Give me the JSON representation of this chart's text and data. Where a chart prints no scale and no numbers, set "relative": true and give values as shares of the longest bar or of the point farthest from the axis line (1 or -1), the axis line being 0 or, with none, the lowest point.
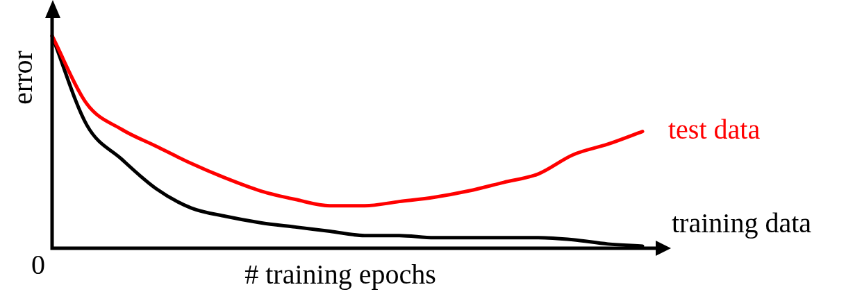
{
  "chart_data": {
    "type": "line",
    "relative": true,
    "xlabel": "# training epochs",
    "ylabel": "error",
    "categories": [
      null,
      null,
      null,
      null,
      null,
      null,
      null,
      null,
      null,
      null,
      null,
      null,
      null,
      null,
      null,
      null,
      null,
      null
    ],
    "series": [
      {
        "name": "test data",
        "color": "#ff0000",
        "values": [
          1.0,
          0.68,
          0.56,
          0.48,
          0.4,
          0.33,
          0.27,
          0.23,
          0.2,
          0.2,
          0.22,
          0.24,
          0.27,
          0.31,
          0.35,
          0.44,
          0.49,
          0.55
        ]
      },
      {
        "name": "training data",
        "color": "#000000",
        "values": [
          1.0,
          0.58,
          0.42,
          0.28,
          0.19,
          0.15,
          0.12,
          0.1,
          0.08,
          0.06,
          0.06,
          0.05,
          0.05,
          0.05,
          0.05,
          0.04,
          0.02,
          0.01
        ]
      }
    ],
    "annotations": [
      "0"
    ],
    "legend": false,
    "marker": "none",
    "line_style": "solid"
  }
}
